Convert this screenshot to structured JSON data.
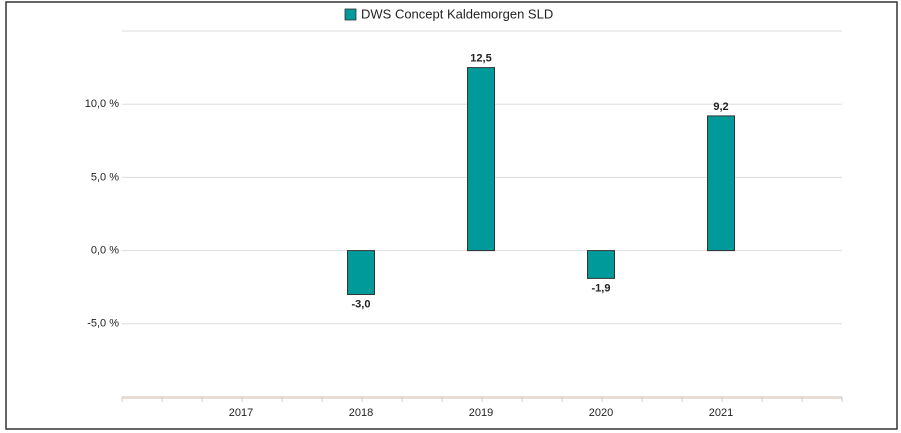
{
  "chart_data": {
    "type": "bar",
    "categories": [
      "2017",
      "2018",
      "2019",
      "2020",
      "2021"
    ],
    "series": [
      {
        "name": "DWS Concept Kaldemorgen  SLD",
        "color": "#009a9a",
        "values": [
          null,
          -3.0,
          12.5,
          -1.9,
          9.2
        ],
        "value_labels": [
          null,
          "-3,0",
          "12,5",
          "-1,9",
          "9,2"
        ]
      }
    ],
    "ylim": [
      -10,
      15
    ],
    "yticks": [
      {
        "value": -5,
        "label": "-5,0 %"
      },
      {
        "value": 0,
        "label": "0,0 %"
      },
      {
        "value": 5,
        "label": "5,0 %"
      },
      {
        "value": 10,
        "label": "10,0 %"
      }
    ],
    "grid": true,
    "legend": "top"
  }
}
